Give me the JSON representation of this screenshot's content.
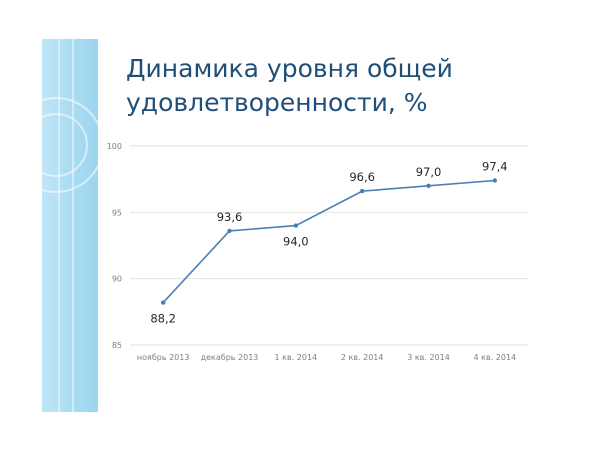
{
  "slide": {
    "title": "Динамика уровня общей удовлетворенности, %"
  },
  "colors": {
    "line": "#4a7fb5",
    "grid": "#e2e2e2",
    "title": "#1f4e79",
    "band": "#a9dcf2"
  },
  "chart_data": {
    "type": "line",
    "categories": [
      "ноябрь 2013",
      "декабрь 2013",
      "1 кв. 2014",
      "2 кв. 2014",
      "3 кв. 2014",
      "4 кв. 2014"
    ],
    "series": [
      {
        "values": [
          88.2,
          93.6,
          94.0,
          96.6,
          97.0,
          97.4
        ]
      }
    ],
    "data_labels": [
      "88,2",
      "93,6",
      "94,0",
      "96,6",
      "97,0",
      "97,4"
    ],
    "yticks": [
      85,
      90,
      95,
      100
    ],
    "ytick_labels": [
      "85",
      "90",
      "95",
      "100"
    ],
    "ylim": [
      85,
      100
    ],
    "grid": true,
    "legend": "none"
  }
}
